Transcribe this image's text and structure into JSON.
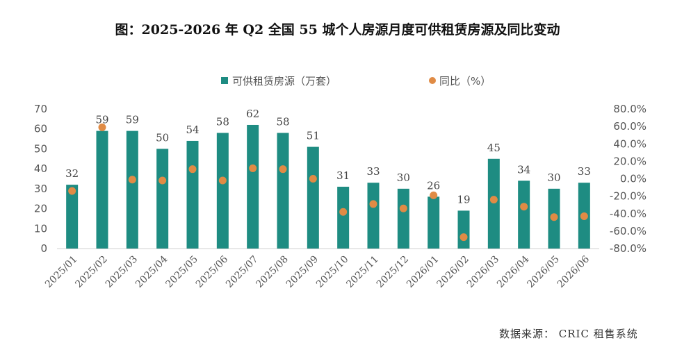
{
  "title": "图：2025-2026 年 Q2 全国 55 城个人房源月度可供租赁房源及同比变动",
  "source": "数据来源：  CRIC 租售系统",
  "colors": {
    "bar": "#1e8c82",
    "dot": "#e08b45"
  },
  "chart_data": {
    "type": "bar",
    "categories": [
      "2025/01",
      "2025/02",
      "2025/03",
      "2025/04",
      "2025/05",
      "2025/06",
      "2025/07",
      "2025/08",
      "2025/09",
      "2025/10",
      "2025/11",
      "2025/12",
      "2026/01",
      "2026/02",
      "2026/03",
      "2026/04",
      "2026/05",
      "2026/06"
    ],
    "series": [
      {
        "name": "可供租赁房源（万套）",
        "type": "bar",
        "axis": "left",
        "values": [
          32,
          59,
          59,
          50,
          54,
          58,
          62,
          58,
          51,
          31,
          33,
          30,
          26,
          19,
          45,
          34,
          30,
          33
        ]
      },
      {
        "name": "同比（%）",
        "type": "scatter",
        "axis": "right",
        "values": [
          -14,
          59,
          -1,
          -2,
          11,
          -2,
          12,
          11,
          0,
          -38,
          -29,
          -34,
          -19,
          -67,
          -24,
          -32,
          -44,
          -43
        ]
      }
    ],
    "yleft": {
      "min": 0,
      "max": 70,
      "ticks": [
        "0",
        "10",
        "20",
        "30",
        "40",
        "50",
        "60",
        "70"
      ]
    },
    "yright": {
      "min": -80,
      "max": 80,
      "ticks": [
        "-80.0%",
        "-60.0%",
        "-40.0%",
        "-20.0%",
        "0.0%",
        "20.0%",
        "40.0%",
        "60.0%",
        "80.0%"
      ]
    },
    "legend_position": "top",
    "grid": false
  }
}
